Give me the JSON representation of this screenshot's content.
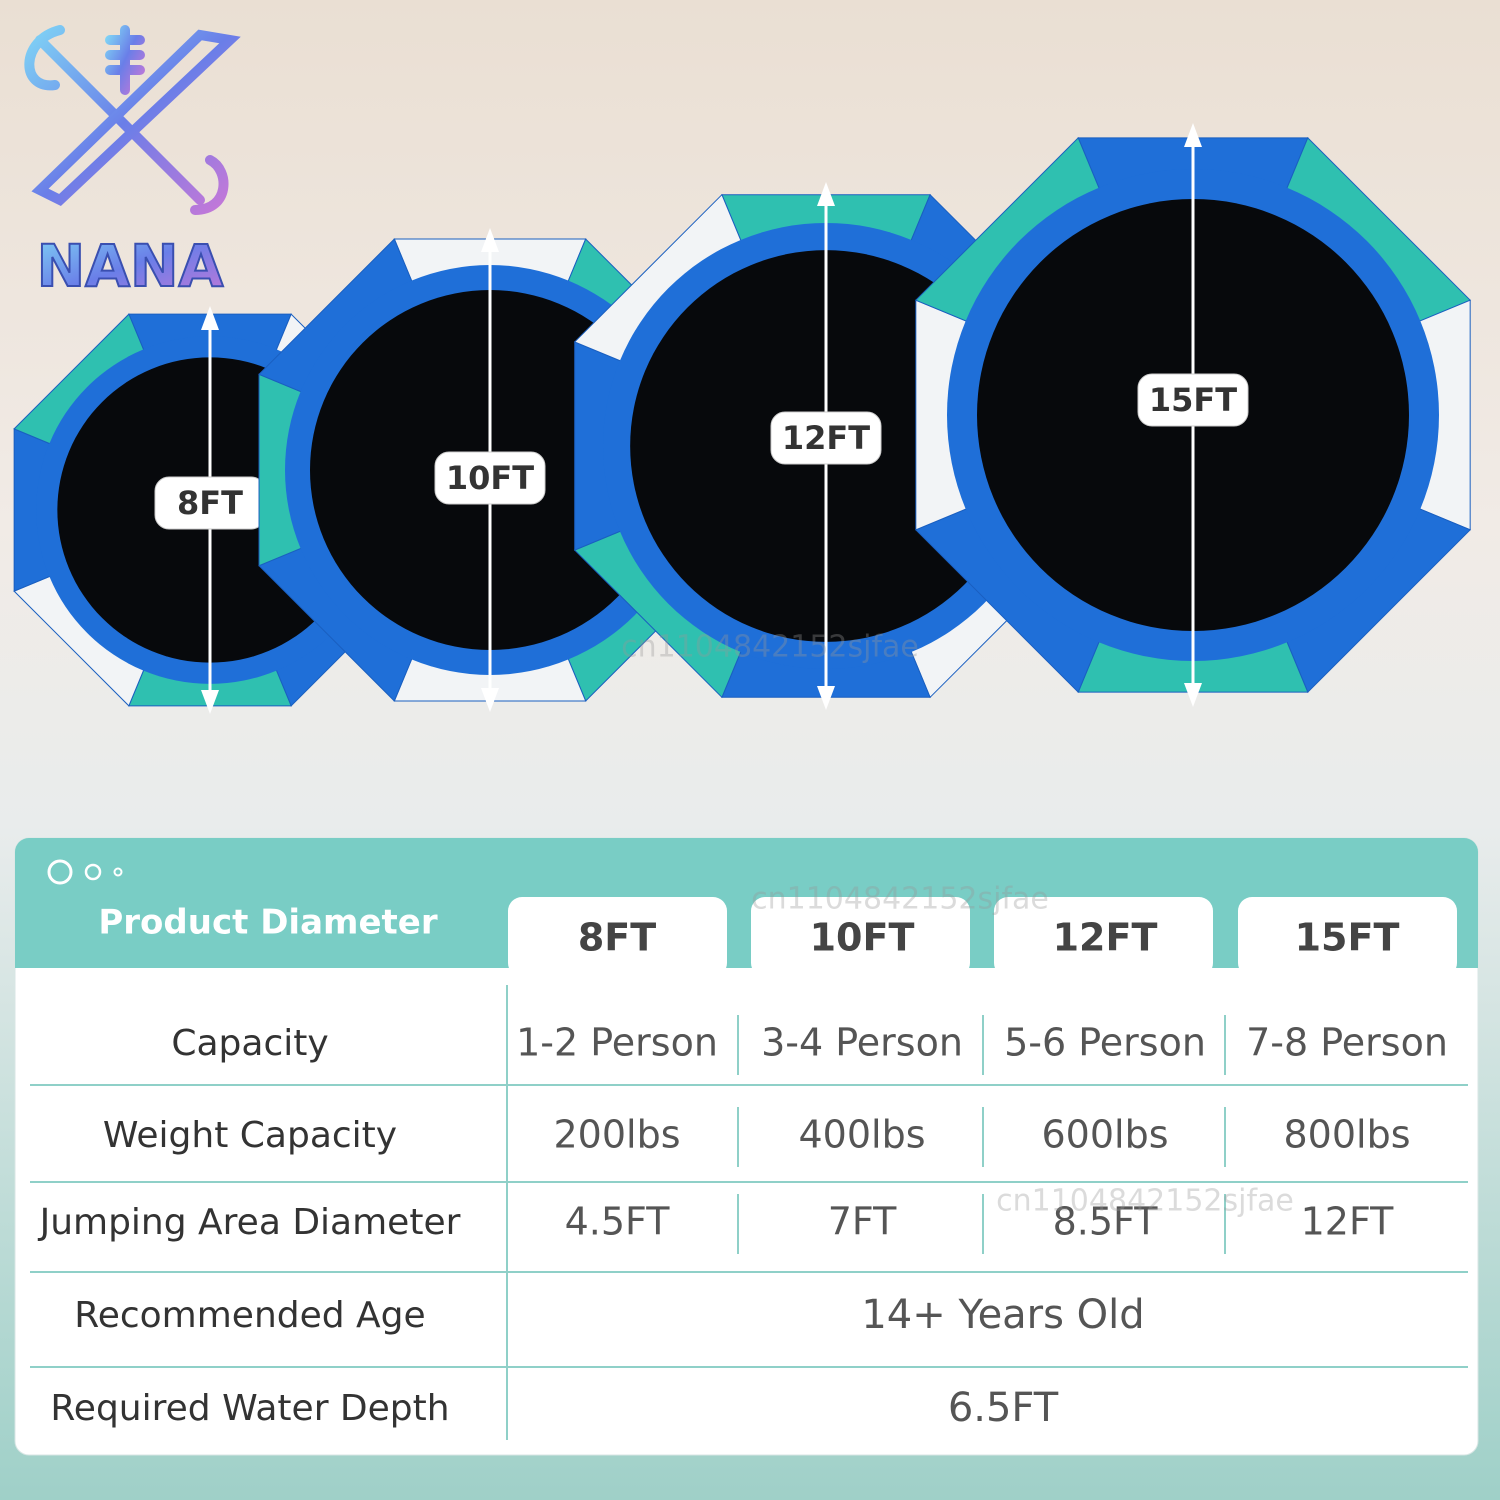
{
  "brand": "NANA",
  "sizes": [
    "8FT",
    "10FT",
    "12FT",
    "15FT"
  ],
  "watermarks": [
    "cn1104842152sjfae",
    "cn1104842152sjfae",
    "cn1104842152sjfae"
  ],
  "table": {
    "header": "Product Diameter",
    "columns": [
      "8FT",
      "10FT",
      "12FT",
      "15FT"
    ],
    "rows": [
      {
        "label": "Capacity",
        "cells": [
          "1-2 Person",
          "3-4 Person",
          "5-6 Person",
          "7-8 Person"
        ]
      },
      {
        "label": "Weight Capacity",
        "cells": [
          "200lbs",
          "400lbs",
          "600lbs",
          "800lbs"
        ]
      },
      {
        "label": "Jumping Area Diameter",
        "cells": [
          "4.5FT",
          "7FT",
          "8.5FT",
          "12FT"
        ]
      },
      {
        "label": "Recommended Age",
        "span": "14+ Years Old"
      },
      {
        "label": "Required Water Depth",
        "span": "6.5FT"
      }
    ]
  }
}
